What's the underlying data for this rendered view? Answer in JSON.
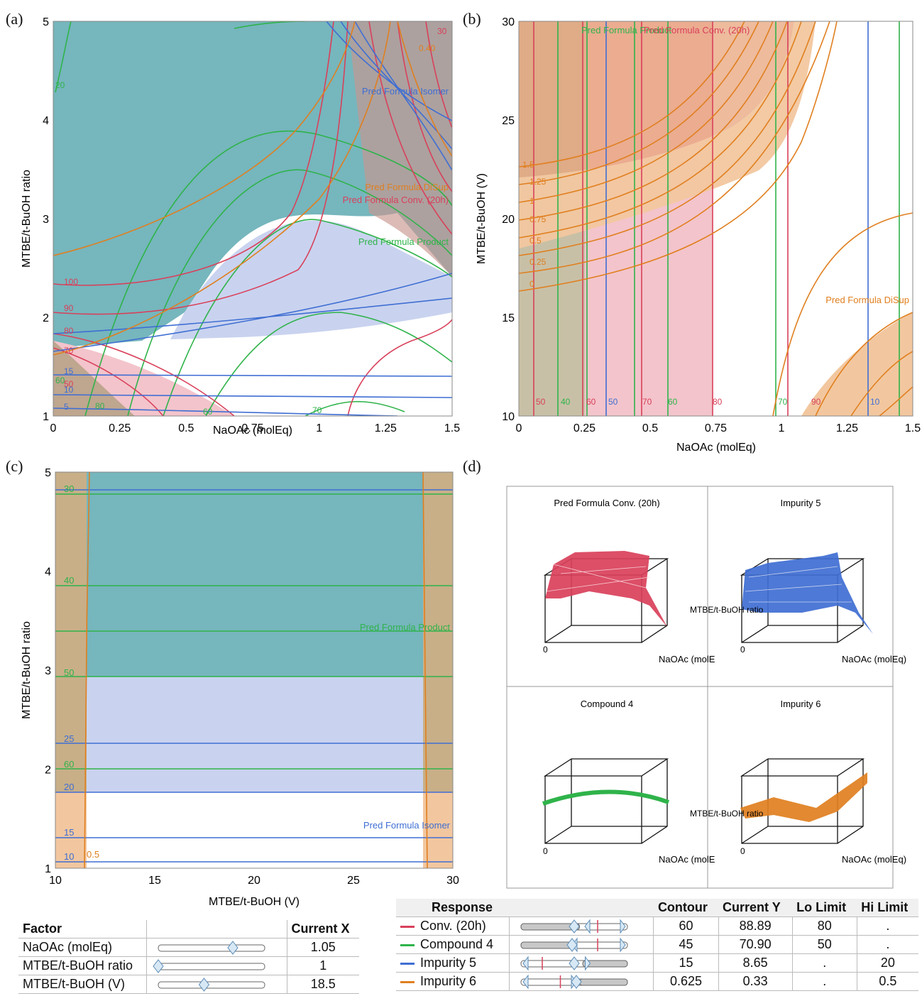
{
  "panels": {
    "a": "(a)",
    "b": "(b)",
    "c": "(c)",
    "d": "(d)"
  },
  "colors": {
    "conv": "#d9405a",
    "compound": "#2fb34a",
    "impurity5": "#3f6ed3",
    "impurity6": "#e07f1f",
    "tealFill": "#76b6bd",
    "blueFill": "#c9d3ef",
    "pinkFill": "#f3c4cb",
    "orangeFill": "#f2c79f"
  },
  "chart_data": [
    {
      "id": "a",
      "type": "contour",
      "xlabel": "NaOAc (molEq)",
      "ylabel": "MTBE/t-BuOH ratio",
      "xlim": [
        0,
        1.5
      ],
      "ylim": [
        1,
        5
      ],
      "xticks": [
        "0",
        "0.25",
        "0.5",
        "0.75",
        "1",
        "1.25",
        "1.5"
      ],
      "yticks": [
        "1",
        "2",
        "3",
        "4",
        "5"
      ],
      "series_labels": [
        "Pred Formula Isomer",
        "Pred Formula DiSup",
        "Pred Formula Conv. (20h)",
        "Pred Formula Product"
      ],
      "contour_labels": [
        "20",
        "100",
        "90",
        "80",
        "70",
        "60",
        "50",
        "15",
        "10",
        "5",
        "80",
        "60",
        "70",
        "30",
        "0.40"
      ]
    },
    {
      "id": "b",
      "type": "contour",
      "xlabel": "NaOAc (molEq)",
      "ylabel": "MTBE/t-BuOH (V)",
      "xlim": [
        0,
        1.5
      ],
      "ylim": [
        10,
        30
      ],
      "xticks": [
        "0",
        "0.25",
        "0.5",
        "0.75",
        "1",
        "1.25",
        "1.5"
      ],
      "yticks": [
        "10",
        "15",
        "20",
        "25",
        "30"
      ],
      "series_labels": [
        "Pred Formula Product",
        "Pred Formula Conv. (20h)",
        "Pred Formula DiSup"
      ],
      "contour_labels": [
        "1.5",
        "1.25",
        "1",
        "0.75",
        "0.5",
        "0.25",
        "0",
        "50",
        "40",
        "60",
        "50",
        "70",
        "60",
        "80",
        "70",
        "90",
        "10"
      ]
    },
    {
      "id": "c",
      "type": "contour",
      "xlabel": "MTBE/t-BuOH (V)",
      "ylabel": "MTBE/t-BuOH ratio",
      "xlim": [
        10,
        30
      ],
      "ylim": [
        1,
        5
      ],
      "xticks": [
        "10",
        "15",
        "20",
        "25",
        "30"
      ],
      "yticks": [
        "1",
        "2",
        "3",
        "4",
        "5"
      ],
      "series_labels": [
        "Pred Formula Product",
        "Pred Formula Isomer"
      ],
      "contour_labels": [
        "30",
        "40",
        "50",
        "25",
        "60",
        "20",
        "15",
        "10",
        "0.5"
      ]
    },
    {
      "id": "d",
      "type": "surface",
      "subplots": [
        {
          "title": "Pred Formula Conv. (20h)",
          "xlabel": "NaOAc (molE",
          "ylabel": "MT",
          "tick": "0"
        },
        {
          "title": "Impurity 5",
          "xlabel": "NaOAc (molEq)",
          "ylabel": "MTBE/t-BuOH ratio",
          "tick": "0"
        },
        {
          "title": "Compound 4",
          "xlabel": "NaOAc (molE",
          "ylabel": "MT",
          "tick": "0"
        },
        {
          "title": "Impurity 6",
          "xlabel": "NaOAc (molEq)",
          "ylabel": "MTBE/t-BuOH ratio",
          "tick": "0"
        }
      ]
    }
  ],
  "factor_table": {
    "headers": [
      "Factor",
      "Current X"
    ],
    "rows": [
      {
        "name": "NaOAc (molEq)",
        "value": "1.05",
        "pos": 0.7
      },
      {
        "name": "MTBE/t-BuOH ratio",
        "value": "1",
        "pos": 0.0
      },
      {
        "name": "MTBE/t-BuOH (V)",
        "value": "18.5",
        "pos": 0.43
      }
    ]
  },
  "response_table": {
    "headers": [
      "Response",
      "Contour",
      "Current Y",
      "Lo Limit",
      "Hi Limit"
    ],
    "rows": [
      {
        "name": "Conv. (20h)",
        "contour": "60",
        "current": "88.89",
        "lo": "80",
        "hi": "."
      },
      {
        "name": "Compound 4",
        "contour": "45",
        "current": "70.90",
        "lo": "50",
        "hi": "."
      },
      {
        "name": "Impurity 5",
        "contour": "15",
        "current": "8.65",
        "lo": ".",
        "hi": "20"
      },
      {
        "name": "Impurity 6",
        "contour": "0.625",
        "current": "0.33",
        "lo": ".",
        "hi": "0.5"
      }
    ]
  }
}
